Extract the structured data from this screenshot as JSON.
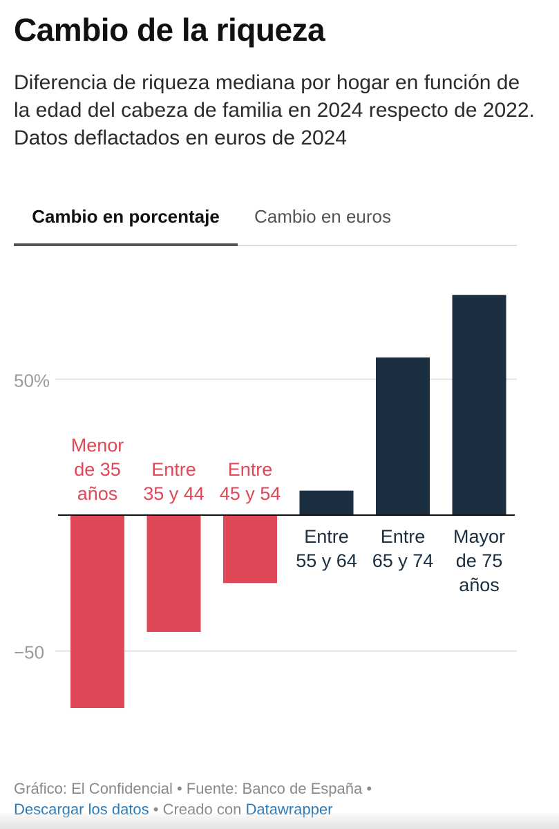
{
  "header": {
    "title": "Cambio de la riqueza",
    "subtitle": "Diferencia de riqueza mediana por hogar en función de la edad del cabeza de familia en 2024 respecto de 2022. Datos deflactados en euros de 2024"
  },
  "tabs": [
    {
      "label": "Cambio en porcentaje",
      "active": true
    },
    {
      "label": "Cambio en euros",
      "active": false
    }
  ],
  "chart_data": {
    "type": "bar",
    "categories": [
      [
        "Menor",
        "de 35",
        "años"
      ],
      [
        "Entre",
        "35 y 44"
      ],
      [
        "Entre",
        "45 y 54"
      ],
      [
        "Entre",
        "55 y 64"
      ],
      [
        "Entre",
        "65 y 74"
      ],
      [
        "Mayor",
        "de 75",
        "años"
      ]
    ],
    "values": [
      -71,
      -43,
      -25,
      9,
      58,
      81
    ],
    "ylim": [
      -85,
      91
    ],
    "yticks": [
      {
        "value": 50,
        "label": "50%"
      },
      {
        "value": -50,
        "label": "−50"
      }
    ],
    "grid": true,
    "colors": {
      "negative": "#e04757",
      "positive": "#1b2e40",
      "gridline": "#e3e3e3",
      "tick_label": "#9a9a9a"
    }
  },
  "footer": {
    "credit_text": "Gráfico: El Confidencial • Fuente: Banco de España •",
    "download_link": "Descargar los datos",
    "created_text": " • Creado con ",
    "tool_link": "Datawrapper"
  }
}
